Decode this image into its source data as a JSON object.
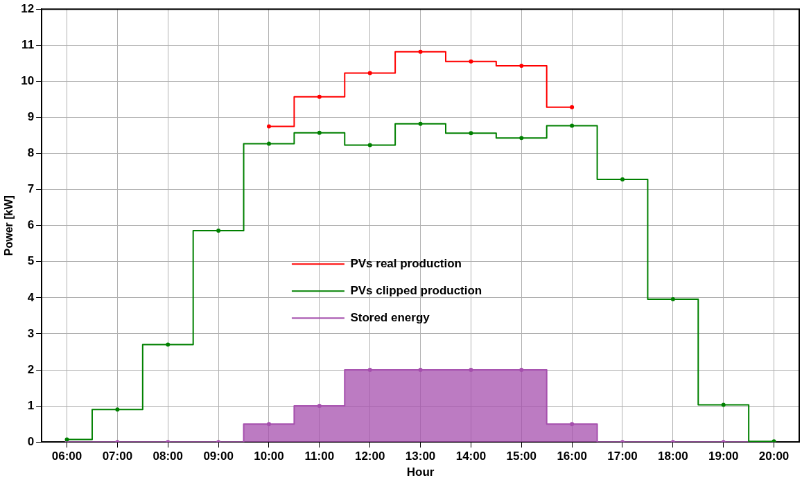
{
  "chart_data": {
    "type": "step",
    "xlabel": "Hour",
    "ylabel": "Power [kW]",
    "x": [
      6,
      7,
      8,
      9,
      10,
      11,
      12,
      13,
      14,
      15,
      16,
      17,
      18,
      19,
      20
    ],
    "series": [
      {
        "name": "PVs real production",
        "color": "#ff0000",
        "values": [
          null,
          null,
          null,
          null,
          8.75,
          9.57,
          10.23,
          10.82,
          10.55,
          10.43,
          9.28,
          null,
          null,
          null,
          null
        ]
      },
      {
        "name": "PVs clipped production",
        "color": "#008000",
        "values": [
          0.07,
          0.9,
          2.7,
          5.86,
          8.27,
          8.57,
          8.23,
          8.82,
          8.56,
          8.43,
          8.77,
          7.28,
          3.96,
          1.03,
          0.02
        ]
      },
      {
        "name": "Stored energy",
        "type": "area",
        "color": "#a54fad",
        "values": [
          0,
          0,
          0,
          0,
          0.5,
          1,
          2,
          2,
          2,
          2,
          0.5,
          0,
          0,
          0,
          0
        ]
      }
    ],
    "xlim": [
      5.5,
      20.5
    ],
    "xticks": [
      {
        "value": 6,
        "label": "06:00"
      },
      {
        "value": 7,
        "label": "07:00"
      },
      {
        "value": 8,
        "label": "08:00"
      },
      {
        "value": 9,
        "label": "09:00"
      },
      {
        "value": 10,
        "label": "10:00"
      },
      {
        "value": 11,
        "label": "11:00"
      },
      {
        "value": 12,
        "label": "12:00"
      },
      {
        "value": 13,
        "label": "13:00"
      },
      {
        "value": 14,
        "label": "14:00"
      },
      {
        "value": 15,
        "label": "15:00"
      },
      {
        "value": 16,
        "label": "16:00"
      },
      {
        "value": 17,
        "label": "17:00"
      },
      {
        "value": 18,
        "label": "18:00"
      },
      {
        "value": 19,
        "label": "19:00"
      },
      {
        "value": 20,
        "label": "20:00"
      }
    ],
    "ylim": [
      0,
      12
    ],
    "yticks": [
      0,
      1,
      2,
      3,
      4,
      5,
      6,
      7,
      8,
      9,
      10,
      11,
      12
    ],
    "grid": true,
    "legend": "center",
    "marker": "circle"
  }
}
